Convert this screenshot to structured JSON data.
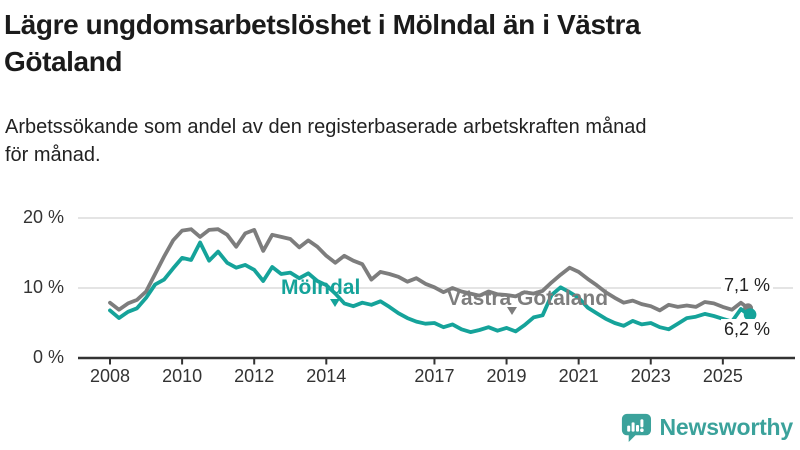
{
  "header": {
    "title_lines": [
      "Lägre ungdomsarbetslöshet i Mölndal än i Västra",
      "Götaland"
    ],
    "subtitle_lines": [
      "Arbetssökande som andel av den registerbaserade arbetskraften månad",
      "för månad."
    ]
  },
  "colors": {
    "grid": "#dcdcdc",
    "axis": "#333333",
    "text": "#222222"
  },
  "chart_data": {
    "type": "line",
    "title": "Lägre ungdomsarbetslöshet i Mölndal än i Västra Götaland",
    "subtitle": "Arbetssökande som andel av den registerbaserade arbetskraften månad för månad.",
    "unit": "%",
    "grid": "horizontal",
    "legend_position": "inline-labels",
    "x_axis": {
      "ticks": [
        2008,
        2010,
        2012,
        2014,
        2017,
        2019,
        2021,
        2023,
        2025
      ],
      "tick_labels": [
        "2008",
        "2010",
        "2012",
        "2014",
        "2017",
        "2019",
        "2021",
        "2023",
        "2025"
      ],
      "range": [
        2008,
        2025.7
      ]
    },
    "y_axis": {
      "ticks": [
        0,
        10,
        20
      ],
      "tick_labels": [
        "0 %",
        "10 %",
        "20 %"
      ],
      "gridlines": [
        10,
        20
      ],
      "range": [
        0,
        20
      ]
    },
    "x": [
      2008,
      2008.25,
      2008.5,
      2008.75,
      2009,
      2009.25,
      2009.5,
      2009.75,
      2010,
      2010.25,
      2010.5,
      2010.75,
      2011,
      2011.25,
      2011.5,
      2011.75,
      2012,
      2012.25,
      2012.5,
      2012.75,
      2013,
      2013.25,
      2013.5,
      2013.75,
      2014,
      2014.25,
      2014.5,
      2014.75,
      2015,
      2015.25,
      2015.5,
      2015.75,
      2016,
      2016.25,
      2016.5,
      2016.75,
      2017,
      2017.25,
      2017.5,
      2017.75,
      2018,
      2018.25,
      2018.5,
      2018.75,
      2019,
      2019.25,
      2019.5,
      2019.75,
      2020,
      2020.25,
      2020.5,
      2020.75,
      2021,
      2021.25,
      2021.5,
      2021.75,
      2022,
      2022.25,
      2022.5,
      2022.75,
      2023,
      2023.25,
      2023.5,
      2023.75,
      2024,
      2024.25,
      2024.5,
      2024.75,
      2025,
      2025.25,
      2025.5,
      2025.7
    ],
    "series": [
      {
        "name": "Mölndal",
        "color": "#15a39a",
        "end_label": "6,2 %",
        "end_value": 6.2,
        "values": [
          6.8,
          5.7,
          6.6,
          7.1,
          8.6,
          10.5,
          11.2,
          12.8,
          14.3,
          14.0,
          16.5,
          13.9,
          15.2,
          13.6,
          12.9,
          13.3,
          12.6,
          11.0,
          13.0,
          12.0,
          12.2,
          11.4,
          12.1,
          11.0,
          10.4,
          9.2,
          7.8,
          7.4,
          7.9,
          7.6,
          8.1,
          7.3,
          6.4,
          5.7,
          5.2,
          4.9,
          5.0,
          4.4,
          4.8,
          4.1,
          3.7,
          4.0,
          4.4,
          3.9,
          4.3,
          3.8,
          4.7,
          5.8,
          6.1,
          9.0,
          10.1,
          9.4,
          8.6,
          7.2,
          6.4,
          5.6,
          5.0,
          4.6,
          5.3,
          4.8,
          5.0,
          4.4,
          4.1,
          4.9,
          5.7,
          5.9,
          6.3,
          6.0,
          5.6,
          5.2,
          7.0,
          6.2
        ]
      },
      {
        "name": "Västra Götaland",
        "color": "#7d7d7d",
        "end_label": "7,1 %",
        "end_value": 7.1,
        "values": [
          7.9,
          6.9,
          7.8,
          8.3,
          9.5,
          12.0,
          14.5,
          16.8,
          18.2,
          18.4,
          17.3,
          18.3,
          18.4,
          17.6,
          15.9,
          17.8,
          18.3,
          15.3,
          17.6,
          17.3,
          17.0,
          15.8,
          16.8,
          15.9,
          14.6,
          13.6,
          14.6,
          13.9,
          13.4,
          11.2,
          12.3,
          12.0,
          11.6,
          10.9,
          11.4,
          10.6,
          10.1,
          9.4,
          10.0,
          9.5,
          9.2,
          8.9,
          9.5,
          9.1,
          9.0,
          8.8,
          9.4,
          9.2,
          9.6,
          10.8,
          11.9,
          12.9,
          12.3,
          11.3,
          10.4,
          9.4,
          8.6,
          7.9,
          8.2,
          7.7,
          7.4,
          6.8,
          7.6,
          7.3,
          7.5,
          7.3,
          8.0,
          7.8,
          7.3,
          6.9,
          7.9,
          7.1
        ]
      }
    ]
  },
  "footer": {
    "brand": "Newsworthy",
    "brand_color": "#3ba29b"
  }
}
